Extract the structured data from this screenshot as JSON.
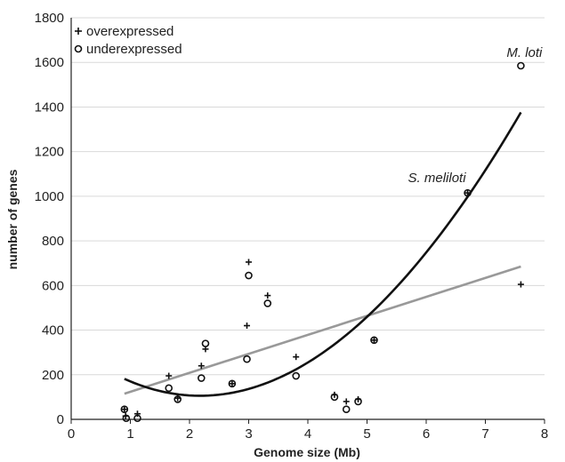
{
  "chart_data": {
    "type": "scatter",
    "xlabel": "Genome size (Mb)",
    "ylabel": "number of genes",
    "xlim": [
      0,
      8
    ],
    "ylim": [
      0,
      1800
    ],
    "x_ticks": [
      0,
      1,
      2,
      3,
      4,
      5,
      6,
      7,
      8
    ],
    "y_ticks": [
      0,
      200,
      400,
      600,
      800,
      1000,
      1200,
      1400,
      1600,
      1800
    ],
    "grid": "horizontal",
    "legend_position": "top-left",
    "series": [
      {
        "name": "overexpressed",
        "marker": "plus",
        "points": [
          [
            0.9,
            45
          ],
          [
            0.92,
            15
          ],
          [
            1.12,
            25
          ],
          [
            1.65,
            195
          ],
          [
            1.8,
            95
          ],
          [
            2.2,
            240
          ],
          [
            2.27,
            315
          ],
          [
            2.72,
            160
          ],
          [
            2.97,
            420
          ],
          [
            3.0,
            705
          ],
          [
            3.32,
            555
          ],
          [
            3.8,
            280
          ],
          [
            4.45,
            110
          ],
          [
            4.65,
            80
          ],
          [
            4.85,
            90
          ],
          [
            5.12,
            355
          ],
          [
            6.7,
            1015
          ],
          [
            7.6,
            605
          ]
        ]
      },
      {
        "name": "underexpressed",
        "marker": "circle",
        "points": [
          [
            0.9,
            45
          ],
          [
            0.93,
            5
          ],
          [
            1.12,
            5
          ],
          [
            1.65,
            140
          ],
          [
            1.8,
            90
          ],
          [
            2.2,
            185
          ],
          [
            2.27,
            340
          ],
          [
            2.72,
            160
          ],
          [
            2.97,
            270
          ],
          [
            3.0,
            645
          ],
          [
            3.32,
            520
          ],
          [
            3.8,
            195
          ],
          [
            4.45,
            100
          ],
          [
            4.65,
            45
          ],
          [
            4.85,
            80
          ],
          [
            5.12,
            355
          ],
          [
            6.7,
            1015
          ],
          [
            7.6,
            1585
          ]
        ]
      }
    ],
    "trendlines": [
      {
        "kind": "linear",
        "color": "#999999",
        "points": [
          [
            0.9,
            115
          ],
          [
            7.6,
            685
          ]
        ]
      },
      {
        "kind": "polynomial",
        "color": "#111111",
        "x_range": [
          0.9,
          7.6
        ],
        "anchor_points": [
          [
            0.9,
            175
          ],
          [
            1.5,
            135
          ],
          [
            2.3,
            110
          ],
          [
            3.0,
            135
          ],
          [
            4.0,
            250
          ],
          [
            4.8,
            410
          ],
          [
            5.5,
            590
          ],
          [
            6.7,
            1010
          ],
          [
            7.6,
            1370
          ]
        ]
      }
    ],
    "annotations": [
      {
        "text": "M. loti",
        "x": 7.6,
        "y": 1585
      },
      {
        "text": "S. meliloti",
        "x": 6.7,
        "y": 1015
      }
    ]
  },
  "colors": {
    "axis": "#222222",
    "grid": "#d9d9d9",
    "linear_trend": "#999999",
    "poly_trend": "#111111",
    "marker": "#111111"
  }
}
